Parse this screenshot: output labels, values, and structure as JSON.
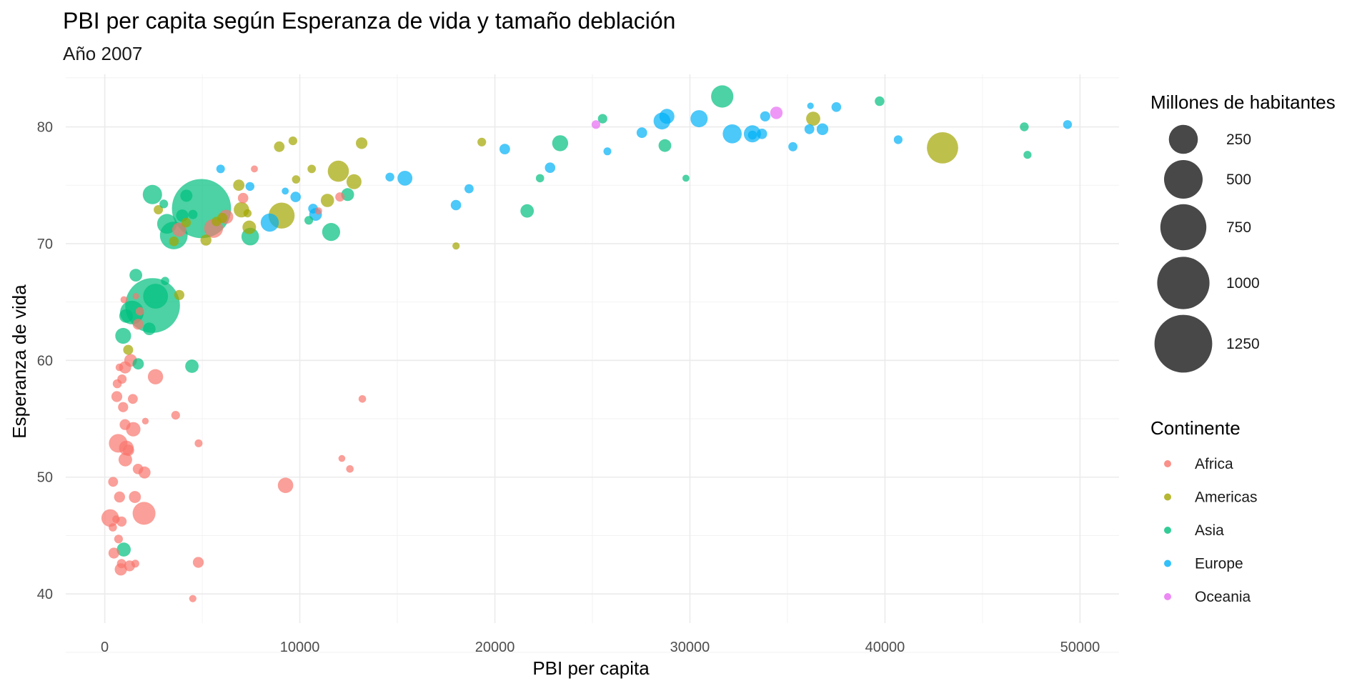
{
  "chart_data": {
    "type": "scatter",
    "title": "PBI per capita según Esperanza de vida y tamaño deblación",
    "subtitle": "Año 2007",
    "xlabel": "PBI per capita",
    "ylabel": "Esperanza de vida",
    "xlim": [
      -2000,
      52000
    ],
    "ylim": [
      37.5,
      84.5
    ],
    "x_ticks": [
      0,
      10000,
      20000,
      30000,
      40000,
      50000
    ],
    "y_ticks": [
      40,
      50,
      60,
      70,
      80
    ],
    "grid": true,
    "legend_position": "right",
    "size_legend": {
      "title": "Millones de habitantes",
      "values": [
        250,
        500,
        750,
        1000,
        1250
      ]
    },
    "color_legend": {
      "title": "Continente",
      "entries": [
        {
          "name": "Africa",
          "color": "#F8766D"
        },
        {
          "name": "Americas",
          "color": "#A3A500"
        },
        {
          "name": "Asia",
          "color": "#00BF7D"
        },
        {
          "name": "Europe",
          "color": "#00B0F6"
        },
        {
          "name": "Oceania",
          "color": "#E76BF3"
        }
      ]
    },
    "series": [
      {
        "name": "Africa",
        "color": "#F8766D",
        "points": [
          [
            6223,
            72.3,
            33
          ],
          [
            4797,
            42.7,
            12
          ],
          [
            1441,
            56.7,
            8
          ],
          [
            12570,
            50.7,
            1.6
          ],
          [
            1217,
            52.3,
            14
          ],
          [
            430,
            49.6,
            8
          ],
          [
            2042,
            50.4,
            18
          ],
          [
            706,
            44.7,
            4
          ],
          [
            1704,
            50.7,
            10
          ],
          [
            986,
            65.2,
            0.7
          ],
          [
            278,
            46.5,
            65
          ],
          [
            3633,
            55.3,
            4
          ],
          [
            1545,
            48.3,
            18
          ],
          [
            2082,
            54.8,
            0.5
          ],
          [
            5581,
            71.3,
            80
          ],
          [
            12154,
            51.6,
            0.6
          ],
          [
            641,
            58.0,
            5
          ],
          [
            690,
            52.9,
            76
          ],
          [
            13206,
            56.7,
            1.5
          ],
          [
            753,
            59.4,
            1.7
          ],
          [
            1328,
            60.0,
            23
          ],
          [
            943,
            56.0,
            9
          ],
          [
            579,
            46.4,
            1.5
          ],
          [
            1463,
            54.1,
            35
          ],
          [
            1569,
            42.6,
            2
          ],
          [
            415,
            45.7,
            3.2
          ],
          [
            12057,
            74.0,
            6
          ],
          [
            1045,
            59.4,
            19
          ],
          [
            759,
            48.3,
            13
          ],
          [
            1042,
            54.5,
            12
          ],
          [
            1803,
            64.2,
            3.3
          ],
          [
            10957,
            72.8,
            1.2
          ],
          [
            3820,
            71.2,
            33
          ],
          [
            824,
            42.1,
            20
          ],
          [
            4811,
            52.9,
            2
          ],
          [
            620,
            56.9,
            12
          ],
          [
            2014,
            46.9,
            135
          ],
          [
            7670,
            76.4,
            0.8
          ],
          [
            863,
            46.2,
            9
          ],
          [
            1598,
            65.5,
            0.2
          ],
          [
            1712,
            63.1,
            12
          ],
          [
            862,
            42.6,
            6
          ],
          [
            9270,
            49.3,
            44
          ],
          [
            2602,
            58.6,
            42
          ],
          [
            4513,
            39.6,
            1.1
          ],
          [
            1107,
            52.5,
            38
          ],
          [
            883,
            58.4,
            6
          ],
          [
            7093,
            73.9,
            10
          ],
          [
            1056,
            51.5,
            29
          ],
          [
            1271,
            42.4,
            12
          ],
          [
            470,
            43.5,
            12
          ]
        ]
      },
      {
        "name": "Americas",
        "color": "#A3A500",
        "points": [
          [
            12779,
            75.3,
            40
          ],
          [
            3822,
            65.6,
            9
          ],
          [
            9066,
            72.4,
            190
          ],
          [
            36319,
            80.7,
            33
          ],
          [
            13172,
            78.6,
            16
          ],
          [
            7007,
            72.9,
            44
          ],
          [
            9645,
            78.8,
            4
          ],
          [
            8948,
            78.3,
            11
          ],
          [
            6025,
            72.2,
            9
          ],
          [
            6873,
            75.0,
            14
          ],
          [
            5728,
            71.9,
            7
          ],
          [
            5186,
            70.3,
            13
          ],
          [
            1202,
            60.9,
            8.5
          ],
          [
            3548,
            70.2,
            7.5
          ],
          [
            7321,
            72.6,
            2.8
          ],
          [
            11978,
            76.2,
            109
          ],
          [
            2749,
            72.9,
            5.7
          ],
          [
            9809,
            75.5,
            3.2
          ],
          [
            4173,
            71.8,
            6.7
          ],
          [
            7409,
            71.4,
            28.7
          ],
          [
            19329,
            78.7,
            4
          ],
          [
            18009,
            69.8,
            1.1
          ],
          [
            42952,
            78.2,
            301
          ],
          [
            10611,
            76.4,
            3.5
          ],
          [
            11416,
            73.7,
            26
          ]
        ]
      },
      {
        "name": "Asia",
        "color": "#00BF7D",
        "points": [
          [
            975,
            43.8,
            32
          ],
          [
            29796,
            75.6,
            0.7
          ],
          [
            1391,
            64.1,
            150
          ],
          [
            1714,
            59.7,
            14
          ],
          [
            4959,
            73.0,
            1319
          ],
          [
            39725,
            82.2,
            7
          ],
          [
            2452,
            64.7,
            1110
          ],
          [
            3541,
            70.7,
            224
          ],
          [
            11606,
            71.0,
            69
          ],
          [
            4471,
            59.5,
            27
          ],
          [
            25523,
            80.7,
            6.4
          ],
          [
            31656,
            82.6,
            127
          ],
          [
            4519,
            72.5,
            6
          ],
          [
            1593,
            67.3,
            23
          ],
          [
            23348,
            78.6,
            49
          ],
          [
            47307,
            77.6,
            2.5
          ],
          [
            10461,
            72.0,
            4
          ],
          [
            12452,
            74.2,
            24
          ],
          [
            3096,
            66.8,
            2.9
          ],
          [
            944,
            62.1,
            47
          ],
          [
            1091,
            63.8,
            29
          ],
          [
            22316,
            75.6,
            3.2
          ],
          [
            2606,
            65.5,
            169
          ],
          [
            3190,
            71.7,
            91
          ],
          [
            21655,
            72.8,
            27
          ],
          [
            47143,
            80.0,
            4.6
          ],
          [
            3970,
            72.4,
            20
          ],
          [
            4185,
            74.1,
            19
          ],
          [
            28718,
            78.4,
            23
          ],
          [
            7458,
            70.6,
            65
          ],
          [
            2442,
            74.2,
            85
          ],
          [
            3025,
            73.4,
            4
          ],
          [
            2281,
            62.7,
            22
          ]
        ]
      },
      {
        "name": "Europe",
        "color": "#00B0F6",
        "points": [
          [
            5937,
            76.4,
            3.6
          ],
          [
            36126,
            79.8,
            8.2
          ],
          [
            33693,
            79.4,
            10.4
          ],
          [
            7446,
            74.9,
            4.6
          ],
          [
            10681,
            73.0,
            7.3
          ],
          [
            14619,
            75.7,
            4.5
          ],
          [
            22833,
            76.5,
            10.2
          ],
          [
            35278,
            78.3,
            5.5
          ],
          [
            33207,
            79.3,
            5.2
          ],
          [
            30470,
            80.7,
            61
          ],
          [
            32170,
            79.4,
            82
          ],
          [
            27538,
            79.5,
            10.7
          ],
          [
            18008,
            73.3,
            10
          ],
          [
            36181,
            81.8,
            0.3
          ],
          [
            40676,
            78.9,
            4.1
          ],
          [
            28570,
            80.5,
            58
          ],
          [
            9254,
            74.5,
            0.7
          ],
          [
            36798,
            79.8,
            16.6
          ],
          [
            49357,
            80.2,
            4.6
          ],
          [
            15390,
            75.6,
            38.5
          ],
          [
            20510,
            78.1,
            10.6
          ],
          [
            10808,
            72.5,
            22.3
          ],
          [
            9787,
            74.0,
            10.2
          ],
          [
            18678,
            74.7,
            5.4
          ],
          [
            25768,
            77.9,
            2
          ],
          [
            28821,
            80.9,
            40.4
          ],
          [
            33860,
            80.9,
            9
          ],
          [
            37506,
            81.7,
            7.6
          ],
          [
            8458,
            71.8,
            71
          ],
          [
            33203,
            79.4,
            60.8
          ]
        ]
      },
      {
        "name": "Oceania",
        "color": "#E76BF3",
        "points": [
          [
            34435,
            81.2,
            20.4
          ],
          [
            25185,
            80.2,
            4.1
          ]
        ]
      }
    ]
  }
}
